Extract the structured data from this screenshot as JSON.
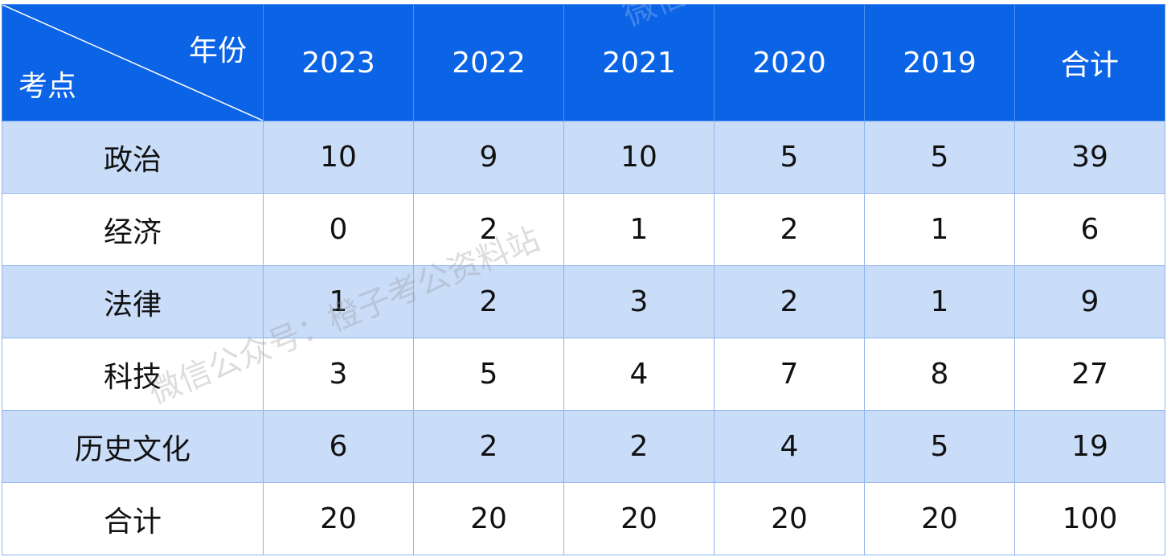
{
  "table": {
    "corner": {
      "col_header": "年份",
      "row_header": "考点"
    },
    "columns": [
      "2023",
      "2022",
      "2021",
      "2020",
      "2019",
      "合计"
    ],
    "rows": [
      {
        "label": "政治",
        "values": [
          "10",
          "9",
          "10",
          "5",
          "5",
          "39"
        ]
      },
      {
        "label": "经济",
        "values": [
          "0",
          "2",
          "1",
          "2",
          "1",
          "6"
        ]
      },
      {
        "label": "法律",
        "values": [
          "1",
          "2",
          "3",
          "2",
          "1",
          "9"
        ]
      },
      {
        "label": "科技",
        "values": [
          "3",
          "5",
          "4",
          "7",
          "8",
          "27"
        ]
      },
      {
        "label": "历史文化",
        "values": [
          "6",
          "2",
          "2",
          "4",
          "5",
          "19"
        ]
      },
      {
        "label": "合计",
        "values": [
          "20",
          "20",
          "20",
          "20",
          "20",
          "100"
        ]
      }
    ]
  },
  "colors": {
    "header_bg": "#0b63e5",
    "shade_row_bg": "#c9dcf8",
    "border": "#8fb4ee"
  },
  "watermark": {
    "text_main": "微信公众号：橙子考公资料站",
    "text_top": "微信公众"
  }
}
